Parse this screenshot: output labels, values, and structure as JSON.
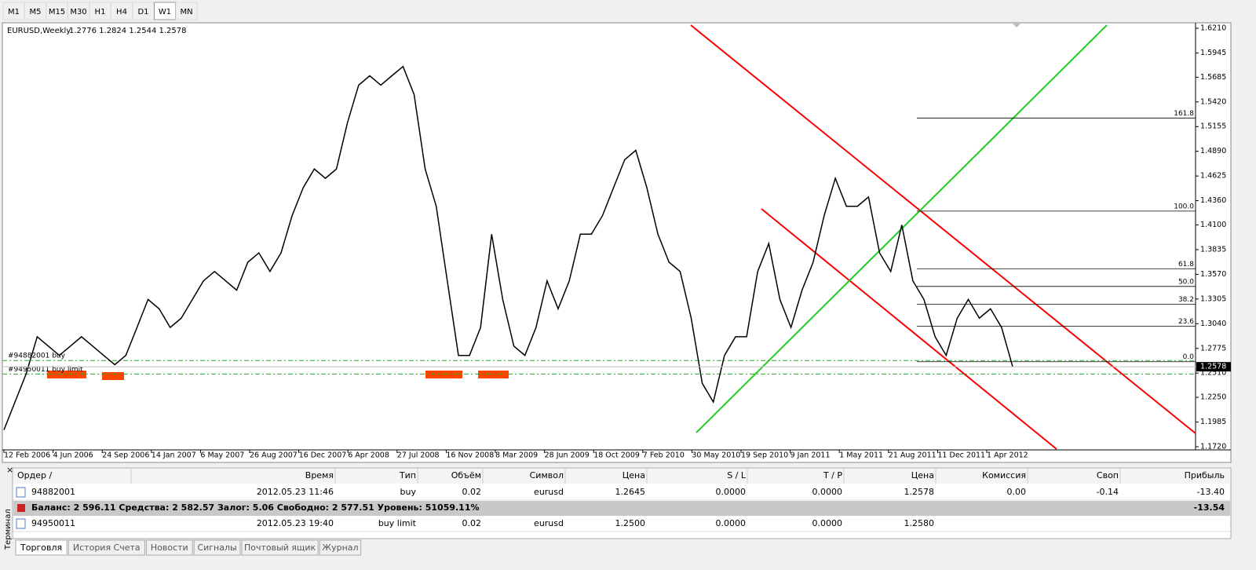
{
  "toolbar": {
    "timeframes": [
      {
        "label": "M1",
        "active": false
      },
      {
        "label": "M5",
        "active": false
      },
      {
        "label": "M15",
        "active": false
      },
      {
        "label": "M30",
        "active": false
      },
      {
        "label": "H1",
        "active": false
      },
      {
        "label": "H4",
        "active": false
      },
      {
        "label": "D1",
        "active": false
      },
      {
        "label": "W1",
        "active": true
      },
      {
        "label": "MN",
        "active": false
      }
    ]
  },
  "chart_data": {
    "type": "line",
    "title": "EURUSD,Weekly",
    "ohlc_header": "1.2776 1.2824 1.2544 1.2578",
    "color": "#000000",
    "values": [
      1.19,
      1.22,
      1.25,
      1.29,
      1.28,
      1.27,
      1.28,
      1.29,
      1.28,
      1.27,
      1.26,
      1.27,
      1.3,
      1.33,
      1.32,
      1.3,
      1.31,
      1.33,
      1.35,
      1.36,
      1.35,
      1.34,
      1.37,
      1.38,
      1.36,
      1.38,
      1.42,
      1.45,
      1.47,
      1.46,
      1.47,
      1.52,
      1.56,
      1.57,
      1.56,
      1.57,
      1.58,
      1.55,
      1.47,
      1.43,
      1.35,
      1.27,
      1.27,
      1.3,
      1.4,
      1.33,
      1.28,
      1.27,
      1.3,
      1.35,
      1.32,
      1.35,
      1.4,
      1.4,
      1.42,
      1.45,
      1.48,
      1.49,
      1.45,
      1.4,
      1.37,
      1.36,
      1.31,
      1.24,
      1.22,
      1.27,
      1.29,
      1.29,
      1.36,
      1.39,
      1.33,
      1.3,
      1.34,
      1.37,
      1.42,
      1.46,
      1.43,
      1.43,
      1.44,
      1.38,
      1.36,
      1.41,
      1.35,
      1.33,
      1.29,
      1.27,
      1.31,
      1.33,
      1.31,
      1.32,
      1.3,
      1.2578
    ],
    "current_price": 1.2578,
    "ylim": [
      1.172,
      1.621
    ],
    "yticks": [
      {
        "value": 1.621,
        "label": "1.6210"
      },
      1.5945,
      1.5685,
      {
        "value": 1.542,
        "label": "1.5420"
      },
      1.5155,
      {
        "value": 1.489,
        "label": "1.4890"
      },
      1.4625,
      {
        "value": 1.436,
        "label": "1.4360"
      },
      {
        "value": 1.41,
        "label": "1.4100"
      },
      1.3835,
      {
        "value": 1.357,
        "label": "1.3570"
      },
      1.3305,
      {
        "value": 1.304,
        "label": "1.3040"
      },
      1.2775,
      {
        "value": 1.251,
        "label": "1.2510"
      },
      {
        "value": 1.225,
        "label": "1.2250"
      },
      1.1985,
      {
        "value": 1.172,
        "label": "1.1720"
      }
    ],
    "xtick_labels": [
      "12 Feb 2006",
      "4 Jun 2006",
      "24 Sep 2006",
      "14 Jan 2007",
      "6 May 2007",
      "26 Aug 2007",
      "16 Dec 2007",
      "6 Apr 2008",
      "27 Jul 2008",
      "16 Nov 2008",
      "8 Mar 2009",
      "28 Jun 2009",
      "18 Oct 2009",
      "7 Feb 2010",
      "30 May 2010",
      "19 Sep 2010",
      "9 Jan 2011",
      "1 May 2011",
      "21 Aug 2011",
      "11 Dec 2011",
      "1 Apr 2012"
    ],
    "fib_levels": [
      {
        "label": "161.8",
        "price": 1.5247
      },
      {
        "label": "100.0",
        "price": 1.4248
      },
      {
        "label": "61.8",
        "price": 1.363
      },
      {
        "label": "50.0",
        "price": 1.344
      },
      {
        "label": "38.2",
        "price": 1.3249
      },
      {
        "label": "23.6",
        "price": 1.3013
      },
      {
        "label": "0.0",
        "price": 1.2632
      }
    ],
    "order_lines": [
      {
        "label": "#94882001 buy",
        "price": 1.2645
      },
      {
        "label": "#94950011 buy limit",
        "price": 1.25
      }
    ]
  },
  "terminal": {
    "side_label": "Терминал",
    "columns": [
      "Ордер /",
      "Время",
      "Тип",
      "Объём",
      "Символ",
      "Цена",
      "S / L",
      "T / P",
      "Цена",
      "Комиссия",
      "Своп",
      "Прибыль"
    ],
    "rows": [
      [
        "94882001",
        "2012.05.23 11:46",
        "buy",
        "0.02",
        "eurusd",
        "1.2645",
        "0.0000",
        "0.0000",
        "1.2578",
        "0.00",
        "-0.14",
        "-13.40"
      ]
    ],
    "balance": {
      "text": "Баланс: 2 596.11  Средства: 2 582.57  Залог: 5.06  Свободно: 2 577.51  Уровень: 51059.11%",
      "profit": "-13.54"
    },
    "pending_rows": [
      [
        "94950011",
        "2012.05.23 19:40",
        "buy limit",
        "0.02",
        "eurusd",
        "1.2500",
        "0.0000",
        "0.0000",
        "1.2580"
      ]
    ],
    "tabs": [
      {
        "label": "Торговля",
        "active": true
      },
      {
        "label": "История Счета",
        "active": false
      },
      {
        "label": "Новости",
        "active": false
      },
      {
        "label": "Сигналы",
        "active": false
      },
      {
        "label": "Почтовый ящик",
        "active": false
      },
      {
        "label": "Журнал",
        "active": false
      }
    ]
  }
}
